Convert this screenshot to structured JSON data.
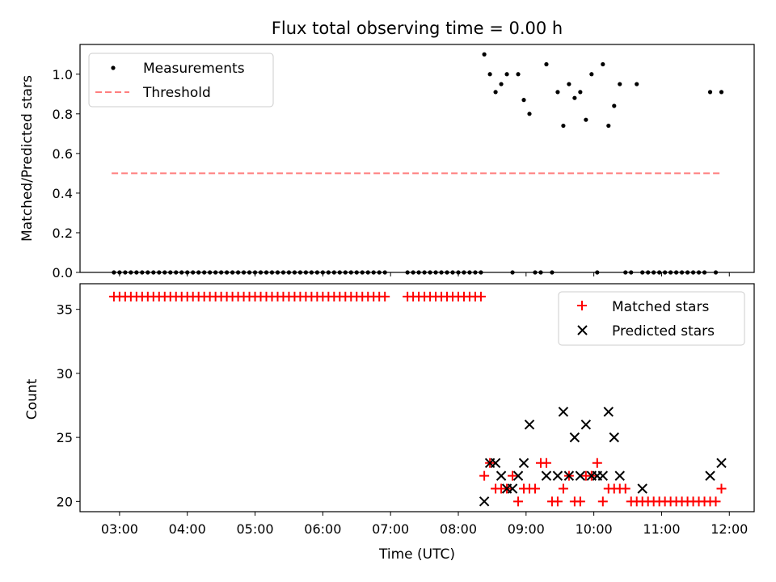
{
  "chart_data": [
    {
      "type": "scatter",
      "title": "Flux total observing time = 0.00 h",
      "ylabel": "Matched/Predicted stars",
      "xlabel": "",
      "xlim": [
        "02:25",
        "12:22"
      ],
      "ylim": [
        0,
        1.15
      ],
      "yticks": [
        0.0,
        0.2,
        0.4,
        0.6,
        0.8,
        1.0
      ],
      "ytick_labels": [
        "0.0",
        "0.2",
        "0.4",
        "0.6",
        "0.8",
        "1.0"
      ],
      "legend": {
        "placement": "upper-left",
        "entries": [
          "Measurements",
          "Threshold"
        ]
      },
      "colors": {
        "measurements": "#000000",
        "threshold": "#ff7f7f"
      },
      "series": [
        {
          "name": "Measurements",
          "marker": "dot",
          "x": [
            "02:55",
            "03:00",
            "03:05",
            "03:10",
            "03:15",
            "03:20",
            "03:25",
            "03:30",
            "03:35",
            "03:40",
            "03:45",
            "03:50",
            "03:55",
            "04:00",
            "04:05",
            "04:10",
            "04:15",
            "04:20",
            "04:25",
            "04:30",
            "04:35",
            "04:40",
            "04:45",
            "04:50",
            "04:55",
            "05:00",
            "05:05",
            "05:10",
            "05:15",
            "05:20",
            "05:25",
            "05:30",
            "05:35",
            "05:40",
            "05:45",
            "05:50",
            "05:55",
            "06:00",
            "06:05",
            "06:10",
            "06:15",
            "06:20",
            "06:25",
            "06:30",
            "06:35",
            "06:40",
            "06:45",
            "06:50",
            "06:55",
            "07:15",
            "07:20",
            "07:25",
            "07:30",
            "07:35",
            "07:40",
            "07:45",
            "07:50",
            "07:55",
            "08:00",
            "08:05",
            "08:10",
            "08:15",
            "08:20",
            "08:23",
            "08:28",
            "08:33",
            "08:38",
            "08:43",
            "08:48",
            "08:53",
            "08:58",
            "09:03",
            "09:08",
            "09:13",
            "09:18",
            "09:23",
            "09:28",
            "09:33",
            "09:38",
            "09:43",
            "09:48",
            "09:53",
            "09:58",
            "10:03",
            "10:08",
            "10:13",
            "10:18",
            "10:23",
            "10:28",
            "10:33",
            "10:38",
            "10:43",
            "10:48",
            "10:53",
            "10:58",
            "11:03",
            "11:08",
            "11:13",
            "11:18",
            "11:23",
            "11:28",
            "11:33",
            "11:38",
            "11:43",
            "11:48",
            "11:53"
          ],
          "y": [
            0,
            0,
            0,
            0,
            0,
            0,
            0,
            0,
            0,
            0,
            0,
            0,
            0,
            0,
            0,
            0,
            0,
            0,
            0,
            0,
            0,
            0,
            0,
            0,
            0,
            0,
            0,
            0,
            0,
            0,
            0,
            0,
            0,
            0,
            0,
            0,
            0,
            0,
            0,
            0,
            0,
            0,
            0,
            0,
            0,
            0,
            0,
            0,
            0,
            0,
            0,
            0,
            0,
            0,
            0,
            0,
            0,
            0,
            0,
            0,
            0,
            0,
            0,
            1.1,
            1.0,
            0.91,
            0.95,
            1.0,
            0.0,
            1.0,
            0.87,
            0.8,
            0.0,
            0.0,
            1.05,
            0.0,
            0.91,
            0.74,
            0.95,
            0.88,
            0.91,
            0.77,
            1.0,
            0.0,
            1.05,
            0.74,
            0.84,
            0.95,
            0.0,
            0.0,
            0.95,
            0.0,
            0.0,
            0,
            0,
            0,
            0,
            0,
            0,
            0,
            0,
            0,
            0,
            0.91,
            0,
            0.91
          ]
        },
        {
          "name": "Threshold",
          "style": "dashed",
          "x": [
            "02:53",
            "11:53"
          ],
          "y": [
            0.5,
            0.5
          ]
        }
      ]
    },
    {
      "type": "scatter",
      "title": "",
      "ylabel": "Count",
      "xlabel": "Time (UTC)",
      "xlim": [
        "02:25",
        "12:22"
      ],
      "ylim": [
        19.2,
        37.0
      ],
      "yticks": [
        20,
        25,
        30,
        35
      ],
      "ytick_labels": [
        "20",
        "25",
        "30",
        "35"
      ],
      "xticks": [
        "03:00",
        "04:00",
        "05:00",
        "06:00",
        "07:00",
        "08:00",
        "09:00",
        "10:00",
        "11:00",
        "12:00"
      ],
      "xtick_labels": [
        "03:00",
        "04:00",
        "05:00",
        "06:00",
        "07:00",
        "08:00",
        "09:00",
        "10:00",
        "11:00",
        "12:00"
      ],
      "legend": {
        "placement": "upper-right",
        "entries": [
          "Matched stars",
          "Predicted stars"
        ]
      },
      "colors": {
        "matched": "#ff0000",
        "predicted": "#000000"
      },
      "series": [
        {
          "name": "Matched stars",
          "marker": "plus",
          "x": [
            "02:55",
            "03:00",
            "03:05",
            "03:10",
            "03:15",
            "03:20",
            "03:25",
            "03:30",
            "03:35",
            "03:40",
            "03:45",
            "03:50",
            "03:55",
            "04:00",
            "04:05",
            "04:10",
            "04:15",
            "04:20",
            "04:25",
            "04:30",
            "04:35",
            "04:40",
            "04:45",
            "04:50",
            "04:55",
            "05:00",
            "05:05",
            "05:10",
            "05:15",
            "05:20",
            "05:25",
            "05:30",
            "05:35",
            "05:40",
            "05:45",
            "05:50",
            "05:55",
            "06:00",
            "06:05",
            "06:10",
            "06:15",
            "06:20",
            "06:25",
            "06:30",
            "06:35",
            "06:40",
            "06:45",
            "06:50",
            "06:55",
            "07:15",
            "07:20",
            "07:25",
            "07:30",
            "07:35",
            "07:40",
            "07:45",
            "07:50",
            "07:55",
            "08:00",
            "08:05",
            "08:10",
            "08:15",
            "08:20",
            "08:23",
            "08:28",
            "08:33",
            "08:38",
            "08:43",
            "08:48",
            "08:53",
            "08:58",
            "09:03",
            "09:08",
            "09:13",
            "09:18",
            "09:23",
            "09:28",
            "09:33",
            "09:38",
            "09:43",
            "09:48",
            "09:53",
            "09:58",
            "10:03",
            "10:08",
            "10:13",
            "10:18",
            "10:23",
            "10:28",
            "10:33",
            "10:38",
            "10:43",
            "10:48",
            "10:53",
            "10:58",
            "11:03",
            "11:08",
            "11:13",
            "11:18",
            "11:23",
            "11:28",
            "11:33",
            "11:38",
            "11:43",
            "11:48",
            "11:53"
          ],
          "y": [
            36,
            36,
            36,
            36,
            36,
            36,
            36,
            36,
            36,
            36,
            36,
            36,
            36,
            36,
            36,
            36,
            36,
            36,
            36,
            36,
            36,
            36,
            36,
            36,
            36,
            36,
            36,
            36,
            36,
            36,
            36,
            36,
            36,
            36,
            36,
            36,
            36,
            36,
            36,
            36,
            36,
            36,
            36,
            36,
            36,
            36,
            36,
            36,
            36,
            36,
            36,
            36,
            36,
            36,
            36,
            36,
            36,
            36,
            36,
            36,
            36,
            36,
            36,
            22,
            23,
            21,
            21,
            21,
            22,
            20,
            21,
            21,
            21,
            23,
            23,
            20,
            20,
            21,
            22,
            20,
            20,
            22,
            22,
            23,
            20,
            21,
            21,
            21,
            21,
            20,
            20,
            20,
            20,
            20,
            20,
            20,
            20,
            20,
            20,
            20,
            20,
            20,
            20,
            20,
            20,
            21
          ]
        },
        {
          "name": "Predicted stars",
          "marker": "x",
          "x": [
            "08:23",
            "08:28",
            "08:33",
            "08:38",
            "08:43",
            "08:48",
            "08:53",
            "08:58",
            "09:03",
            "09:08",
            "09:13",
            "09:18",
            "09:23",
            "09:28",
            "09:33",
            "09:38",
            "09:43",
            "09:48",
            "09:53",
            "09:58",
            "10:03",
            "10:08",
            "10:13",
            "10:18",
            "10:23",
            "10:28",
            "10:33",
            "10:38",
            "10:43",
            "10:48",
            "11:43",
            "11:53"
          ],
          "y": [
            20,
            23,
            23,
            22,
            21,
            21,
            22,
            23,
            26,
            null,
            null,
            22,
            null,
            22,
            27,
            22,
            25,
            22,
            26,
            22,
            22,
            22,
            27,
            25,
            22,
            null,
            null,
            null,
            21,
            null,
            22,
            23
          ]
        }
      ]
    }
  ]
}
